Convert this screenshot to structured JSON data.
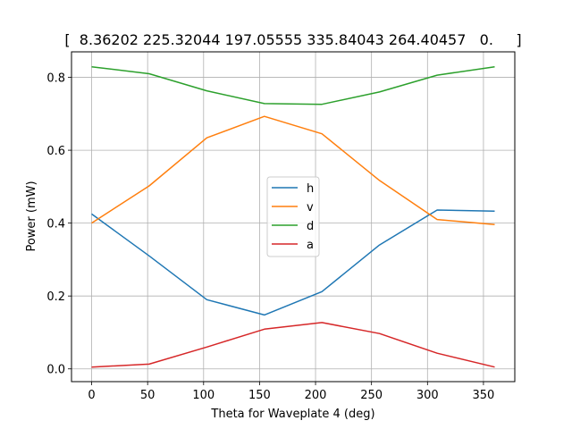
{
  "chart_data": {
    "type": "line",
    "title": "[  8.36202 225.32044 197.05555 335.84043 264.40457   0.     ]",
    "xlabel": "Theta for Waveplate 4 (deg)",
    "ylabel": "Power (mW)",
    "xlim": [
      -18,
      378
    ],
    "ylim": [
      -0.035,
      0.87
    ],
    "xticks": [
      0,
      50,
      100,
      150,
      200,
      250,
      300,
      350
    ],
    "yticks": [
      0.0,
      0.2,
      0.4,
      0.6,
      0.8
    ],
    "xtick_labels": [
      "0",
      "50",
      "100",
      "150",
      "200",
      "250",
      "300",
      "350"
    ],
    "ytick_labels": [
      "0.0",
      "0.2",
      "0.4",
      "0.6",
      "0.8"
    ],
    "grid": true,
    "legend_position": "center",
    "x": [
      0,
      51.4,
      102.9,
      154.3,
      205.7,
      257.1,
      308.6,
      360
    ],
    "series": [
      {
        "name": "h",
        "color": "#1f77b4",
        "values": [
          0.425,
          0.31,
          0.19,
          0.148,
          0.212,
          0.34,
          0.436,
          0.433
        ]
      },
      {
        "name": "v",
        "color": "#ff7f0e",
        "values": [
          0.4,
          0.502,
          0.634,
          0.693,
          0.645,
          0.517,
          0.41,
          0.396
        ]
      },
      {
        "name": "d",
        "color": "#2ca02c",
        "values": [
          0.829,
          0.81,
          0.763,
          0.728,
          0.726,
          0.76,
          0.806,
          0.829
        ]
      },
      {
        "name": "a",
        "color": "#d62728",
        "values": [
          0.005,
          0.013,
          0.06,
          0.109,
          0.127,
          0.097,
          0.043,
          0.005
        ]
      }
    ]
  }
}
